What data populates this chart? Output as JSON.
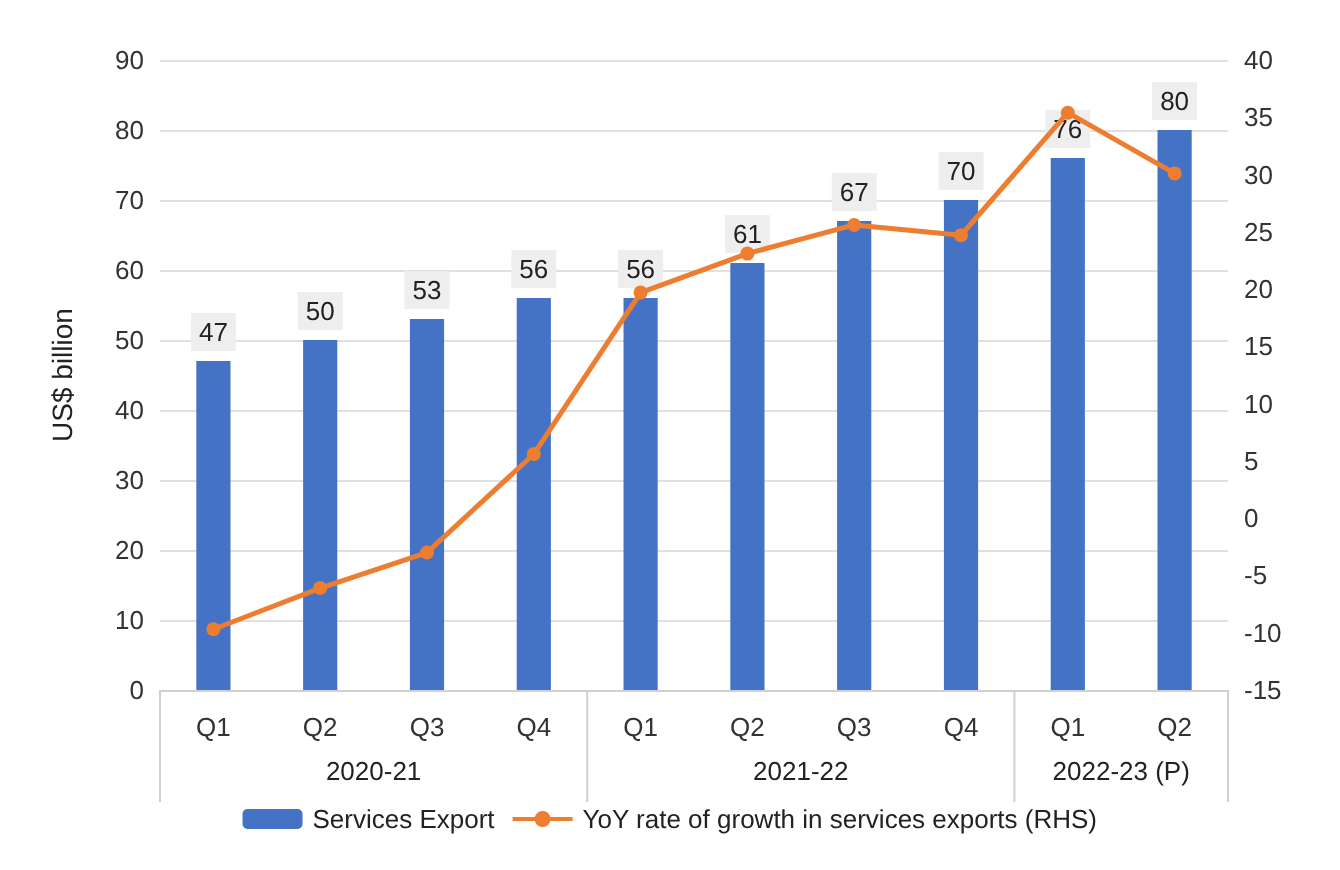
{
  "chart_data": {
    "type": "bar",
    "ylabel": "US$ billion",
    "categories": [
      "Q1",
      "Q2",
      "Q3",
      "Q4",
      "Q1",
      "Q2",
      "Q3",
      "Q4",
      "Q1",
      "Q2"
    ],
    "series": [
      {
        "name": "Services Export",
        "color": "#4472c4",
        "values": [
          47,
          50,
          53,
          56,
          56,
          61,
          67,
          70,
          76,
          80
        ],
        "value_labels": [
          "47",
          "50",
          "53",
          "56",
          "56",
          "61",
          "67",
          "70",
          "76",
          "80"
        ]
      },
      {
        "name": "YoY rate of growth in services exports (RHS)",
        "type": "line",
        "axis": "y2",
        "color": "#ed7d31",
        "values": [
          -9.7,
          -6.1,
          -3.0,
          5.6,
          19.7,
          23.1,
          25.6,
          24.7,
          35.4,
          30.1
        ]
      }
    ],
    "ylim": [
      0,
      90
    ],
    "yticks": [
      0,
      10,
      20,
      30,
      40,
      50,
      60,
      70,
      80,
      90
    ],
    "y2lim": [
      -15,
      40
    ],
    "y2ticks": [
      -15,
      -10,
      -5,
      0,
      5,
      10,
      15,
      20,
      25,
      30,
      35,
      40
    ],
    "annotations": [
      "2020-21",
      "2021-22",
      "2022-23 (P)"
    ],
    "grid": "y",
    "legend": "bottom",
    "marker": "circle",
    "line_style": "solid"
  }
}
